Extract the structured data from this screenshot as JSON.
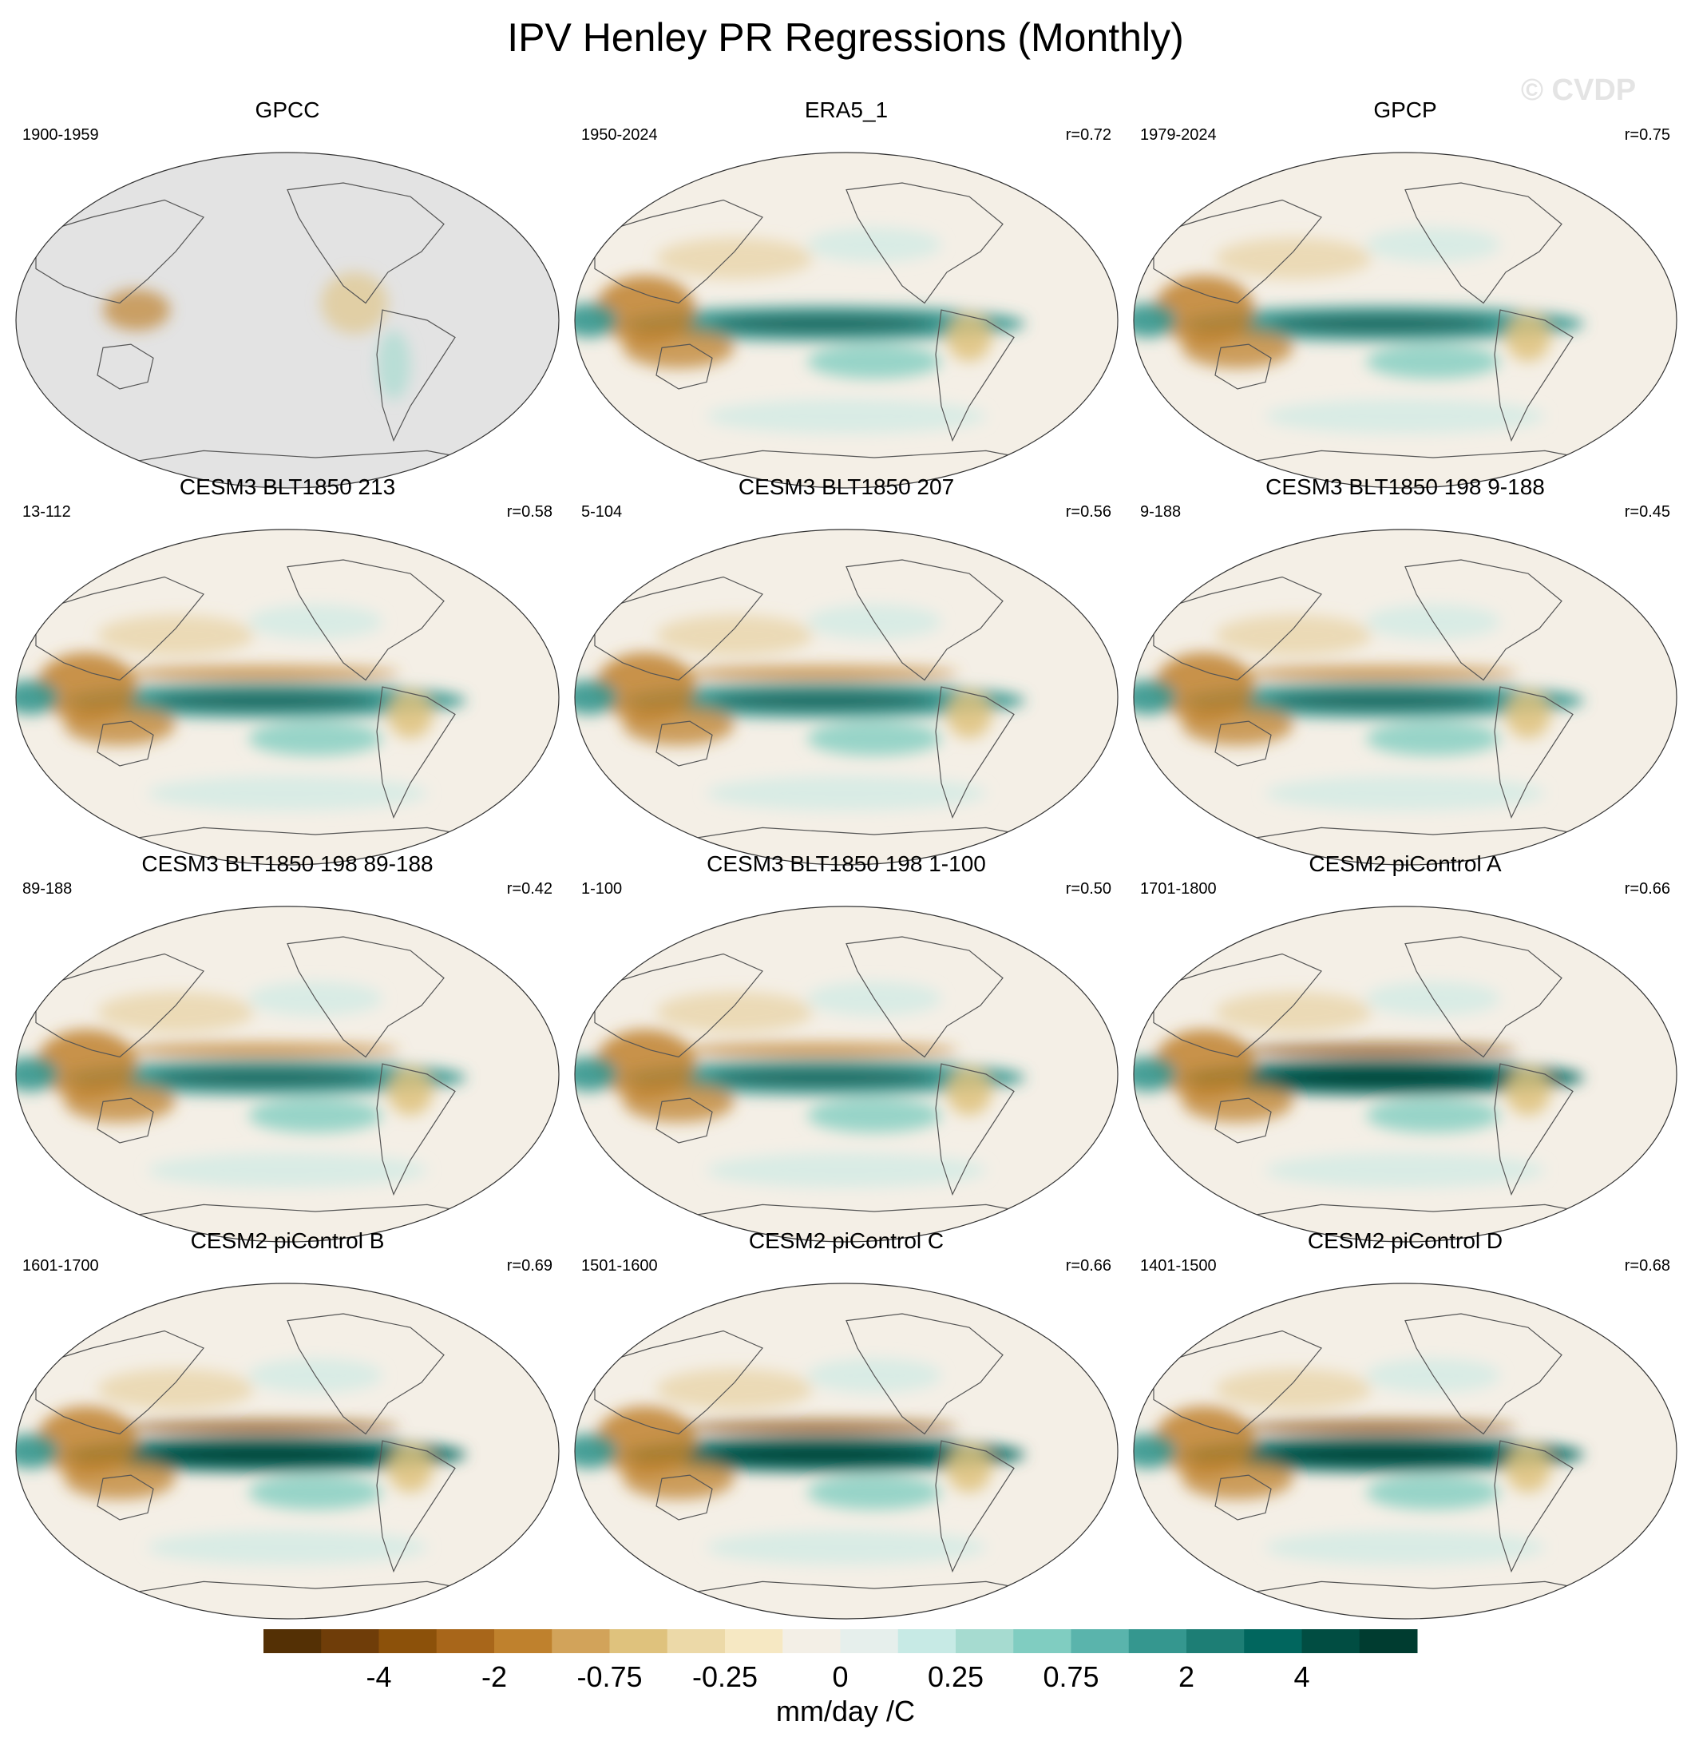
{
  "figure": {
    "title": "IPV Henley PR Regressions (Monthly)",
    "watermark": "© CVDP"
  },
  "chart_data": {
    "type": "heatmap",
    "projection": "Robinson (global, Pacific-centred)",
    "variable": "precipitation regression onto IPV Henley index",
    "panels": [
      {
        "title": "GPCC",
        "period": "1900-1959",
        "r": "",
        "pattern": "gpcc"
      },
      {
        "title": "ERA5_1",
        "period": "1950-2024",
        "r": "r=0.72",
        "pattern": "obs"
      },
      {
        "title": "GPCP",
        "period": "1979-2024",
        "r": "r=0.75",
        "pattern": "obs"
      },
      {
        "title": "CESM3 BLT1850 213",
        "period": "13-112",
        "r": "r=0.58",
        "pattern": "model"
      },
      {
        "title": "CESM3 BLT1850 207",
        "period": "5-104",
        "r": "r=0.56",
        "pattern": "model"
      },
      {
        "title": "CESM3 BLT1850 198 9-188",
        "period": "9-188",
        "r": "r=0.45",
        "pattern": "model"
      },
      {
        "title": "CESM3 BLT1850 198 89-188",
        "period": "89-188",
        "r": "r=0.42",
        "pattern": "model"
      },
      {
        "title": "CESM3 BLT1850 198 1-100",
        "period": "1-100",
        "r": "r=0.50",
        "pattern": "model"
      },
      {
        "title": "CESM2 piControl A",
        "period": "1701-1800",
        "r": "r=0.66",
        "pattern": "cesm2"
      },
      {
        "title": "CESM2 piControl B",
        "period": "1601-1700",
        "r": "r=0.69",
        "pattern": "cesm2"
      },
      {
        "title": "CESM2 piControl C",
        "period": "1501-1600",
        "r": "r=0.66",
        "pattern": "cesm2"
      },
      {
        "title": "CESM2 piControl D",
        "period": "1401-1500",
        "r": "r=0.68",
        "pattern": "cesm2"
      }
    ],
    "colorbar": {
      "label": "mm/day /C",
      "tick_labels": [
        "-4",
        "-2",
        "-0.75",
        "-0.25",
        "0",
        "0.25",
        "0.75",
        "2",
        "4"
      ],
      "colors": [
        "#543005",
        "#6f3d09",
        "#8c510a",
        "#a8661a",
        "#bf812d",
        "#d2a35a",
        "#dfc27d",
        "#ecd9a8",
        "#f6e8c3",
        "#f3efe6",
        "#e6efec",
        "#c7eae5",
        "#a6dbd0",
        "#80cdc1",
        "#5ab4ac",
        "#35978f",
        "#1d7e75",
        "#01665e",
        "#014d42",
        "#003c30"
      ]
    },
    "map_colors": {
      "land_mask": "#e3e3e3",
      "neutral": "#f4efe6",
      "wet": "#35978f",
      "wet_strong": "#01665e",
      "dry": "#bf812d",
      "dry_light": "#dfc27d",
      "coast": "#555555"
    }
  }
}
